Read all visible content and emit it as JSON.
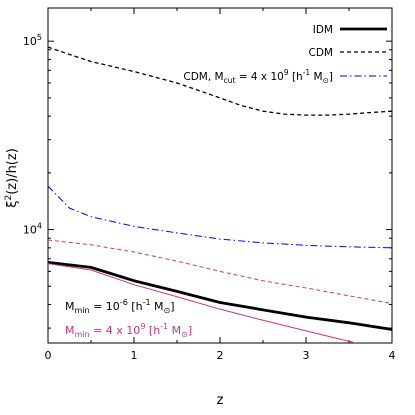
{
  "chart_data": {
    "type": "line",
    "xlabel": "z",
    "ylabel": "ξ²(z)/h(z)",
    "ylabel_parts": {
      "main": "ξ",
      "sup": "2",
      "rest": "(z)/h(z)"
    },
    "xlim": [
      0,
      4
    ],
    "ylim": [
      2500,
      150000
    ],
    "yscale": "log",
    "grid": false,
    "legend_position": "top-right",
    "x_ticks": [
      0,
      1,
      2,
      3,
      4
    ],
    "x_tick_labels": [
      "0",
      "1",
      "2",
      "3",
      "4"
    ],
    "y_major_ticks": [
      10000,
      100000
    ],
    "y_tick_labels": [
      {
        "base": "10",
        "exp": "4"
      },
      {
        "base": "10",
        "exp": "5"
      }
    ],
    "legend": [
      {
        "series": "idm_mmin_low",
        "label": "IDM"
      },
      {
        "series": "cdm_mmin_low",
        "label": "CDM"
      },
      {
        "series": "cdm_mcut_mmin_low",
        "label_parts": [
          "CDM,  M",
          "cut",
          " = 4 x 10",
          "9",
          " [h",
          "-1",
          " M",
          "⊙",
          "]"
        ]
      }
    ],
    "series": [
      {
        "id": "idm_mmin_low",
        "color": "#000000",
        "dash": "solid",
        "width": 2.8,
        "x": [
          0,
          0.5,
          1,
          1.5,
          2,
          2.5,
          3,
          3.5,
          4
        ],
        "y": [
          6700,
          6300,
          5350,
          4700,
          4100,
          3750,
          3430,
          3200,
          2950
        ]
      },
      {
        "id": "cdm_mmin_low",
        "color": "#000000",
        "dash": "dashed",
        "width": 1.3,
        "x": [
          0,
          0.25,
          0.5,
          1,
          1.5,
          2,
          2.25,
          2.5,
          2.75,
          3,
          3.25,
          3.5,
          3.75,
          4
        ],
        "y": [
          93000,
          85000,
          78000,
          69000,
          60000,
          50000,
          45500,
          42500,
          41000,
          40500,
          40500,
          41000,
          41800,
          42500
        ]
      },
      {
        "id": "cdm_mcut_mmin_low",
        "color": "#0000ff",
        "dash": "dashdot",
        "width": 1,
        "x": [
          0,
          0.25,
          0.5,
          1,
          1.5,
          2,
          2.5,
          3,
          3.5,
          4
        ],
        "y": [
          17000,
          13000,
          11700,
          10400,
          9600,
          8900,
          8500,
          8250,
          8100,
          8000
        ]
      },
      {
        "id": "idm_mmin_high",
        "color": "#c8338b",
        "dash": "solid",
        "width": 1,
        "x": [
          0,
          0.5,
          1,
          1.5,
          2,
          2.5,
          3,
          3.5,
          4
        ],
        "y": [
          6600,
          6100,
          5100,
          4400,
          3780,
          3300,
          2900,
          2550,
          2250
        ]
      },
      {
        "id": "cdm_mmin_high",
        "color": "#c8338b",
        "dash": "dashed",
        "width": 1,
        "x": [
          0,
          0.5,
          1,
          1.5,
          2,
          2.5,
          3,
          3.5,
          4
        ],
        "y": [
          8800,
          8300,
          7600,
          6800,
          6000,
          5350,
          4900,
          4450,
          4050
        ]
      }
    ],
    "annotations": [
      {
        "color": "#000000",
        "parts": [
          "M",
          "min",
          " = 10",
          "-6",
          " [h",
          "-1",
          " M",
          "⊙",
          "]"
        ]
      },
      {
        "color": "#c8338b",
        "parts": [
          "M",
          "min",
          " = 4 x 10",
          "9",
          " [h",
          "-1",
          " M",
          "⊙",
          "]"
        ]
      }
    ]
  }
}
